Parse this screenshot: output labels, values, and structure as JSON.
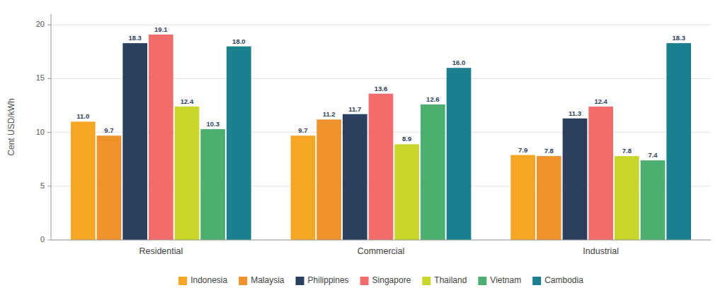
{
  "chart_data": {
    "type": "bar",
    "ylabel": "Cent USD/kWh",
    "categories": [
      "Residential",
      "Commercial",
      "Industrial"
    ],
    "series": [
      {
        "name": "Indonesia",
        "color": "#F5A623",
        "values": [
          11.0,
          9.7,
          7.9
        ],
        "value_labels": [
          "11.0",
          "9.7",
          "7.9"
        ]
      },
      {
        "name": "Malaysia",
        "color": "#F0922B",
        "values": [
          9.7,
          11.2,
          7.8
        ],
        "value_labels": [
          "9.7",
          "11.2",
          "7.8"
        ]
      },
      {
        "name": "Philippines",
        "color": "#2D3F5E",
        "values": [
          18.3,
          11.7,
          11.3
        ],
        "value_labels": [
          "18.3",
          "11.7",
          "11.3"
        ]
      },
      {
        "name": "Singapore",
        "color": "#F46B6B",
        "values": [
          19.1,
          13.6,
          12.4
        ],
        "value_labels": [
          "19.1",
          "13.6",
          "12.4"
        ]
      },
      {
        "name": "Thailand",
        "color": "#C8D62B",
        "values": [
          12.4,
          8.9,
          7.8
        ],
        "value_labels": [
          "12.4",
          "8.9",
          "7.8"
        ]
      },
      {
        "name": "Vietnam",
        "color": "#4CAF6F",
        "values": [
          10.3,
          12.6,
          7.4
        ],
        "value_labels": [
          "10.3",
          "12.6",
          "7.4"
        ]
      },
      {
        "name": "Cambodia",
        "color": "#1A7F8E",
        "values": [
          18.0,
          16.0,
          18.3
        ],
        "value_labels": [
          "18.0",
          "16.0",
          "18.3"
        ]
      }
    ],
    "ylim": [
      0,
      21
    ],
    "yticks": [
      0,
      5,
      10,
      15,
      20
    ],
    "grid": true,
    "legend": "bottom",
    "data_labels": true
  }
}
